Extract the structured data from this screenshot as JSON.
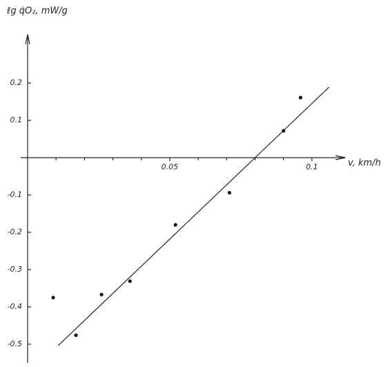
{
  "chart_data": {
    "type": "scatter",
    "ylabel": "ℓg q̇O₂, mW/g",
    "xlabel": "v, km/h",
    "x": [
      0.009,
      0.017,
      0.026,
      0.036,
      0.052,
      0.071,
      0.09,
      0.096
    ],
    "values": [
      -0.375,
      -0.476,
      -0.367,
      -0.331,
      -0.18,
      -0.094,
      0.072,
      0.161
    ],
    "color": "#111111",
    "fit_line": {
      "x": [
        0.0107,
        0.106
      ],
      "y": [
        -0.504,
        0.189
      ]
    },
    "xlim": [
      0,
      0.11
    ],
    "ylim": [
      -0.55,
      0.33
    ],
    "xticks": [
      0.05,
      0.1
    ],
    "xminorticks": [
      0.01,
      0.02,
      0.03,
      0.04,
      0.06,
      0.07,
      0.08,
      0.09
    ],
    "yticks": [
      0.2,
      0.1,
      -0.1,
      -0.2,
      -0.3,
      -0.4,
      -0.5
    ],
    "grid": false
  }
}
